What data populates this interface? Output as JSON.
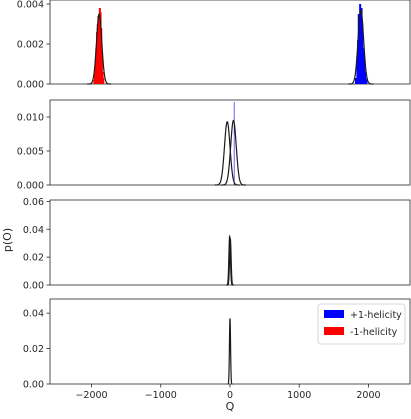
{
  "chart_data": [
    {
      "type": "bar",
      "panel": 1,
      "xlim": [
        -2600,
        2600
      ],
      "ylim": [
        0,
        0.0042
      ],
      "yticks": [
        0.0,
        0.002,
        0.004
      ],
      "ytick_labels": [
        "0.000",
        "0.002",
        "0.004"
      ],
      "series": [
        {
          "name": "+1-helicity",
          "color": "#0000ff",
          "x": [
            1820,
            1840,
            1850,
            1860,
            1870,
            1880,
            1890,
            1900,
            1910,
            1920,
            1930,
            1940,
            1950,
            1960,
            1970
          ],
          "values": [
            0.0003,
            0.0014,
            0.0022,
            0.0035,
            0.0028,
            0.004,
            0.002,
            0.0038,
            0.003,
            0.0018,
            0.0016,
            0.0012,
            0.0006,
            0.0003,
            0.0002
          ]
        },
        {
          "name": "-1-helicity",
          "color": "#ff0000",
          "x": [
            -1960,
            -1950,
            -1940,
            -1930,
            -1920,
            -1910,
            -1900,
            -1890,
            -1880,
            -1870,
            -1860,
            -1850,
            -1840,
            -1830
          ],
          "values": [
            0.0002,
            0.0005,
            0.0012,
            0.0018,
            0.0026,
            0.003,
            0.0034,
            0.0029,
            0.0038,
            0.0036,
            0.0028,
            0.0015,
            0.0006,
            0.0003
          ]
        }
      ],
      "curves": [
        {
          "mean": -1890,
          "sd": 38,
          "peak": 0.0035
        },
        {
          "mean": 1890,
          "sd": 40,
          "peak": 0.0037
        }
      ]
    },
    {
      "type": "line",
      "panel": 2,
      "xlim": [
        -2600,
        2600
      ],
      "ylim": [
        0,
        0.0125
      ],
      "yticks": [
        0.0,
        0.005,
        0.01
      ],
      "ytick_labels": [
        "0.000",
        "0.005",
        "0.010"
      ],
      "series": [
        {
          "name": "+1-helicity",
          "color": "#0000ff",
          "x": [
            60
          ],
          "values": [
            0.0122
          ]
        },
        {
          "name": "-1-helicity",
          "color": "#ff0000",
          "x": [
            -60
          ],
          "values": [
            0.0004
          ]
        }
      ],
      "curves": [
        {
          "mean": -40,
          "sd": 40,
          "peak": 0.0093
        },
        {
          "mean": 50,
          "sd": 40,
          "peak": 0.0095
        }
      ]
    },
    {
      "type": "line",
      "panel": 3,
      "xlim": [
        -2600,
        2600
      ],
      "ylim": [
        0,
        0.061
      ],
      "yticks": [
        0.0,
        0.02,
        0.04,
        0.06
      ],
      "ytick_labels": [
        "0.00",
        "0.02",
        "0.04",
        "0.06"
      ],
      "series": [],
      "curves": [
        {
          "mean": -5,
          "sd": 11,
          "peak": 0.035
        },
        {
          "mean": 5,
          "sd": 11,
          "peak": 0.033
        }
      ]
    },
    {
      "type": "line",
      "panel": 4,
      "xlim": [
        -2600,
        2600
      ],
      "ylim": [
        0,
        0.048
      ],
      "yticks": [
        0.0,
        0.02,
        0.04
      ],
      "ytick_labels": [
        "0.00",
        "0.02",
        "0.04"
      ],
      "xticks": [
        -2000,
        -1000,
        0,
        1000,
        2000
      ],
      "xtick_labels": [
        "−2000",
        "−1000",
        "0",
        "1000",
        "2000"
      ],
      "series": [],
      "curves": [
        {
          "mean": 0,
          "sd": 8,
          "peak": 0.037
        }
      ]
    }
  ],
  "axes": {
    "xlabel": "Q",
    "ylabel": "p(O)"
  },
  "legend": {
    "placement": "top-right of bottom panel",
    "items": [
      {
        "label": "+1-helicity",
        "color": "#0000ff"
      },
      {
        "label": "-1-helicity",
        "color": "#ff0000"
      }
    ]
  },
  "colors": {
    "curve": "#1a1a1a",
    "spine": "#262626"
  }
}
